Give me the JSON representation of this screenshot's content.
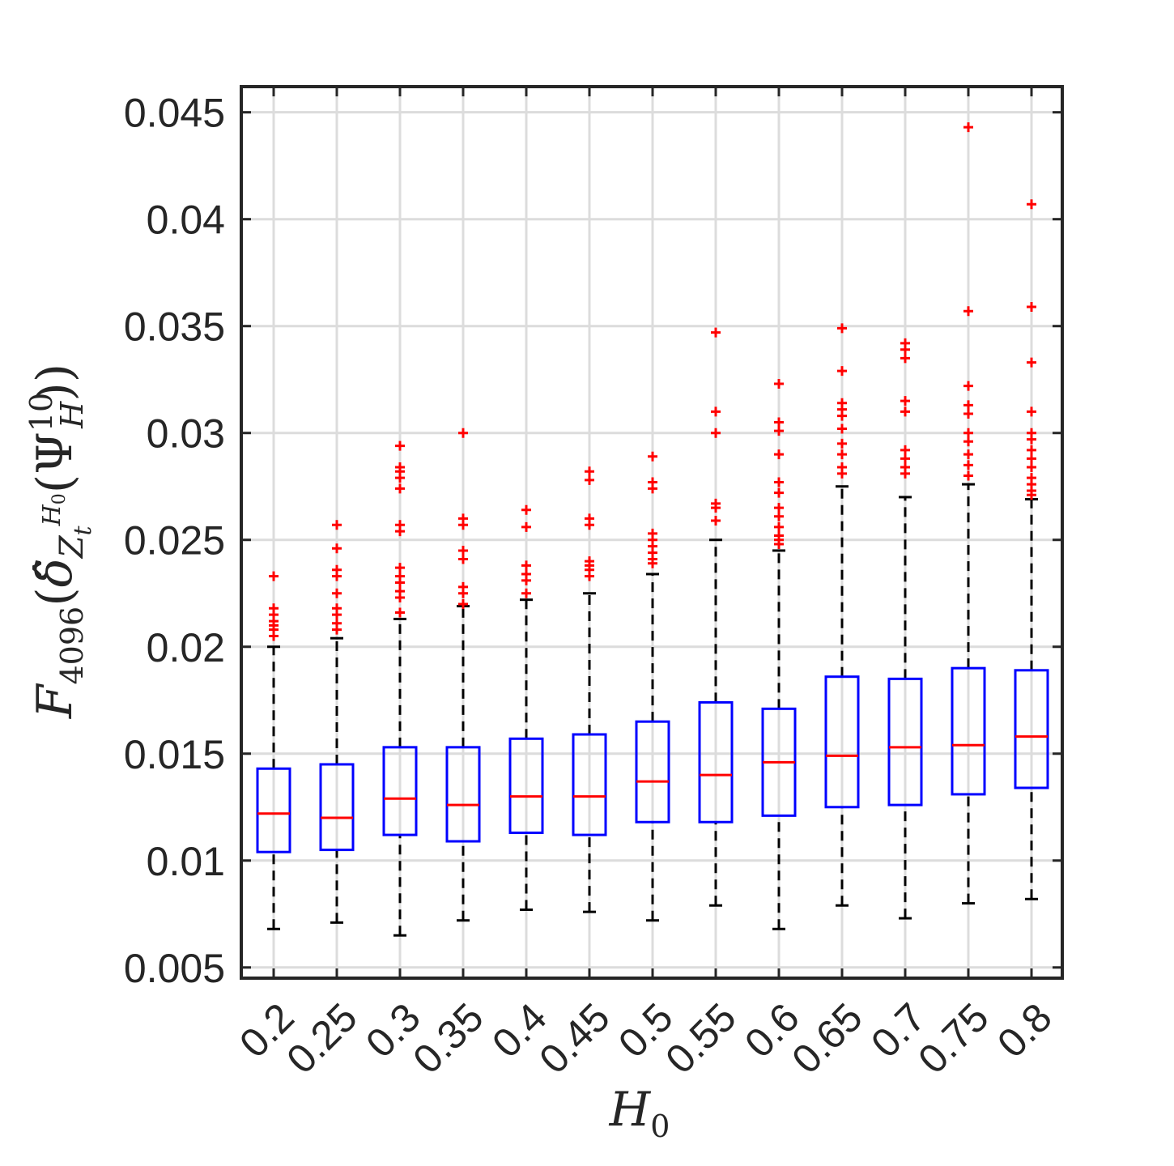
{
  "chart_data": {
    "type": "boxplot",
    "title": "",
    "xlabel": {
      "base": "H",
      "sub": "0"
    },
    "ylabel": {
      "func": "F",
      "func_sub": "4096",
      "open1": "(",
      "delta": "δ̂",
      "z_base": "Z",
      "z_sub": "t",
      "z_sup_base": "H",
      "z_sup_sub": "0",
      "open2": "(",
      "psi": "Ψ",
      "psi_sup": "10",
      "psi_sub": "H",
      "close": "))"
    },
    "ylim": [
      0.0045,
      0.0462
    ],
    "grid": true,
    "colors": {
      "box": "#0000ff",
      "median": "#ff0000",
      "whisker": "#000000",
      "outlier": "#ff0000",
      "grid": "#dcdcdc",
      "axis": "#262626"
    },
    "categories": [
      "0.2",
      "0.25",
      "0.3",
      "0.35",
      "0.4",
      "0.45",
      "0.5",
      "0.55",
      "0.6",
      "0.65",
      "0.7",
      "0.75",
      "0.8"
    ],
    "y_ticks": [
      {
        "value": 0.005,
        "label": "0.005"
      },
      {
        "value": 0.01,
        "label": "0.01"
      },
      {
        "value": 0.015,
        "label": "0.015"
      },
      {
        "value": 0.02,
        "label": "0.02"
      },
      {
        "value": 0.025,
        "label": "0.025"
      },
      {
        "value": 0.03,
        "label": "0.03"
      },
      {
        "value": 0.035,
        "label": "0.035"
      },
      {
        "value": 0.04,
        "label": "0.04"
      },
      {
        "value": 0.045,
        "label": "0.045"
      }
    ],
    "boxes": [
      {
        "category": "0.2",
        "whisker_low": 0.0068,
        "q1": 0.0104,
        "median": 0.0122,
        "q3": 0.0143,
        "whisker_high": 0.02,
        "outliers": [
          0.0233,
          0.0218,
          0.0215,
          0.0212,
          0.021,
          0.0208,
          0.0205
        ]
      },
      {
        "category": "0.25",
        "whisker_low": 0.0071,
        "q1": 0.0105,
        "median": 0.012,
        "q3": 0.0145,
        "whisker_high": 0.0204,
        "outliers": [
          0.0257,
          0.0246,
          0.0236,
          0.0233,
          0.0225,
          0.0218,
          0.0215,
          0.0211,
          0.0208
        ]
      },
      {
        "category": "0.3",
        "whisker_low": 0.0065,
        "q1": 0.0112,
        "median": 0.0129,
        "q3": 0.0153,
        "whisker_high": 0.0213,
        "outliers": [
          0.0294,
          0.0284,
          0.0282,
          0.0279,
          0.0274,
          0.0257,
          0.0254,
          0.0237,
          0.0233,
          0.023,
          0.0226,
          0.0223,
          0.0216
        ]
      },
      {
        "category": "0.35",
        "whisker_low": 0.0072,
        "q1": 0.0109,
        "median": 0.0126,
        "q3": 0.0153,
        "whisker_high": 0.0219,
        "outliers": [
          0.03,
          0.026,
          0.0257,
          0.0245,
          0.0241,
          0.0228,
          0.0225,
          0.022
        ]
      },
      {
        "category": "0.4",
        "whisker_low": 0.0077,
        "q1": 0.0113,
        "median": 0.013,
        "q3": 0.0157,
        "whisker_high": 0.0222,
        "outliers": [
          0.0264,
          0.0256,
          0.0238,
          0.0234,
          0.0231,
          0.0225
        ]
      },
      {
        "category": "0.45",
        "whisker_low": 0.0076,
        "q1": 0.0112,
        "median": 0.013,
        "q3": 0.0159,
        "whisker_high": 0.0225,
        "outliers": [
          0.0282,
          0.0278,
          0.026,
          0.0257,
          0.024,
          0.0238,
          0.0236,
          0.0233
        ]
      },
      {
        "category": "0.5",
        "whisker_low": 0.0072,
        "q1": 0.0118,
        "median": 0.0137,
        "q3": 0.0165,
        "whisker_high": 0.0234,
        "outliers": [
          0.0289,
          0.0277,
          0.0274,
          0.0253,
          0.025,
          0.0247,
          0.0244,
          0.0241,
          0.0239
        ]
      },
      {
        "category": "0.55",
        "whisker_low": 0.0079,
        "q1": 0.0118,
        "median": 0.014,
        "q3": 0.0174,
        "whisker_high": 0.025,
        "outliers": [
          0.0347,
          0.031,
          0.03,
          0.0267,
          0.0265,
          0.0259
        ]
      },
      {
        "category": "0.6",
        "whisker_low": 0.0068,
        "q1": 0.0121,
        "median": 0.0146,
        "q3": 0.0171,
        "whisker_high": 0.0245,
        "outliers": [
          0.0323,
          0.0305,
          0.0301,
          0.029,
          0.0277,
          0.0272,
          0.0265,
          0.0261,
          0.0256,
          0.0252,
          0.025,
          0.0248
        ]
      },
      {
        "category": "0.65",
        "whisker_low": 0.0079,
        "q1": 0.0125,
        "median": 0.0149,
        "q3": 0.0186,
        "whisker_high": 0.0275,
        "outliers": [
          0.0349,
          0.0329,
          0.0314,
          0.0311,
          0.0308,
          0.0302,
          0.0295,
          0.029,
          0.0284,
          0.0281
        ]
      },
      {
        "category": "0.7",
        "whisker_low": 0.0073,
        "q1": 0.0126,
        "median": 0.0153,
        "q3": 0.0185,
        "whisker_high": 0.027,
        "outliers": [
          0.0342,
          0.0339,
          0.0335,
          0.0315,
          0.031,
          0.0292,
          0.0288,
          0.0284,
          0.0281
        ]
      },
      {
        "category": "0.75",
        "whisker_low": 0.008,
        "q1": 0.0131,
        "median": 0.0154,
        "q3": 0.019,
        "whisker_high": 0.0276,
        "outliers": [
          0.0443,
          0.0357,
          0.0322,
          0.0313,
          0.0309,
          0.03,
          0.0296,
          0.029,
          0.0285,
          0.028
        ]
      },
      {
        "category": "0.8",
        "whisker_low": 0.0082,
        "q1": 0.0134,
        "median": 0.0158,
        "q3": 0.0189,
        "whisker_high": 0.0269,
        "outliers": [
          0.0407,
          0.0359,
          0.0333,
          0.031,
          0.03,
          0.0297,
          0.0292,
          0.0288,
          0.0284,
          0.0279,
          0.0276,
          0.0273,
          0.0271
        ]
      }
    ]
  }
}
